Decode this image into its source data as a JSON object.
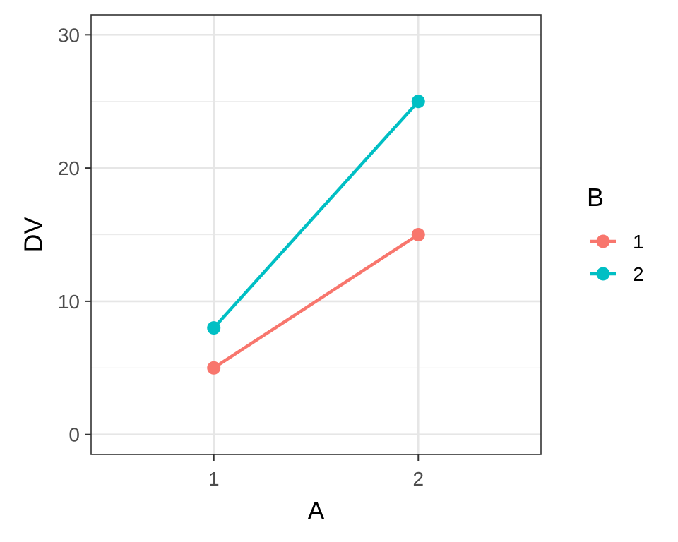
{
  "chart_data": {
    "type": "line",
    "title": "",
    "xlabel": "A",
    "ylabel": "DV",
    "x": [
      "1",
      "2"
    ],
    "ylim": [
      -1.5,
      31.5
    ],
    "yticks": [
      0,
      10,
      20,
      30
    ],
    "grid": true,
    "legend": {
      "title": "B",
      "position": "right"
    },
    "series": [
      {
        "name": "1",
        "color": "#F8766D",
        "values": [
          5,
          15
        ]
      },
      {
        "name": "2",
        "color": "#00BFC4",
        "values": [
          8,
          25
        ]
      }
    ]
  }
}
